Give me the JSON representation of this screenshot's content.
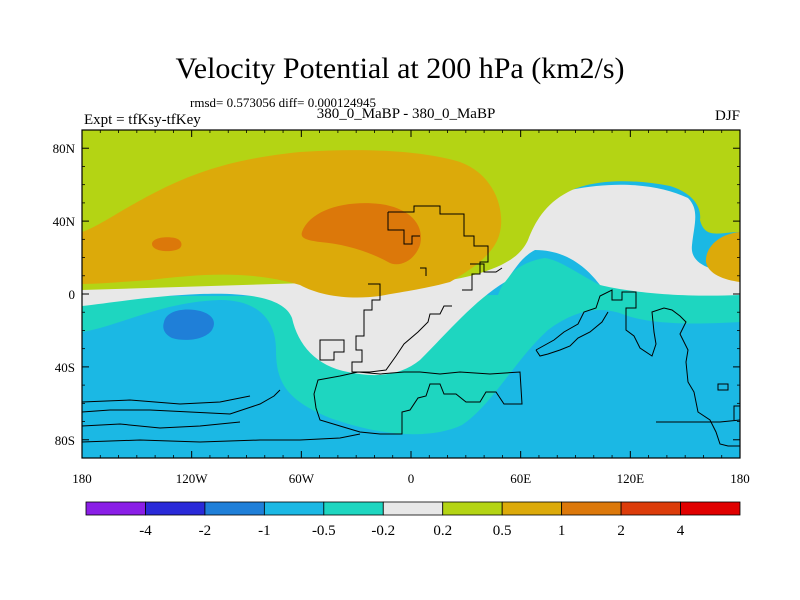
{
  "chart_data": {
    "type": "contour-map",
    "title": "Velocity Potential at 200 hPa (km2/s)",
    "stats_text": "rmsd= 0.573056 diff= 0.000124945",
    "left_label": "Expt = tfKsy-tfKey",
    "center_label": "380_0_MaBP - 380_0_MaBP",
    "right_label": "DJF",
    "x_axis": {
      "range": [
        -180,
        180
      ],
      "ticks": [
        -180,
        -120,
        -60,
        0,
        60,
        120,
        180
      ],
      "tick_labels": [
        "180",
        "120W",
        "60W",
        "0",
        "60E",
        "120E",
        "180"
      ]
    },
    "y_axis": {
      "range": [
        -90,
        90
      ],
      "ticks": [
        80,
        40,
        0,
        -40,
        -80
      ],
      "tick_labels": [
        "80N",
        "40N",
        "0",
        "40S",
        "80S"
      ]
    },
    "colorbar": {
      "levels": [
        -4,
        -2,
        -1,
        -0.5,
        -0.2,
        0.2,
        0.5,
        1,
        2,
        4
      ],
      "level_labels": [
        "-4",
        "-2",
        "-1",
        "-0.5",
        "-0.2",
        "0.2",
        "0.5",
        "1",
        "2",
        "4"
      ],
      "colors": [
        "#8a1ee6",
        "#2a2ad8",
        "#1f7fd8",
        "#1bb8e4",
        "#1ed6c0",
        "#e8e8e8",
        "#b4d414",
        "#dcaa0a",
        "#dc780a",
        "#dc3c0a",
        "#e00000"
      ]
    }
  }
}
